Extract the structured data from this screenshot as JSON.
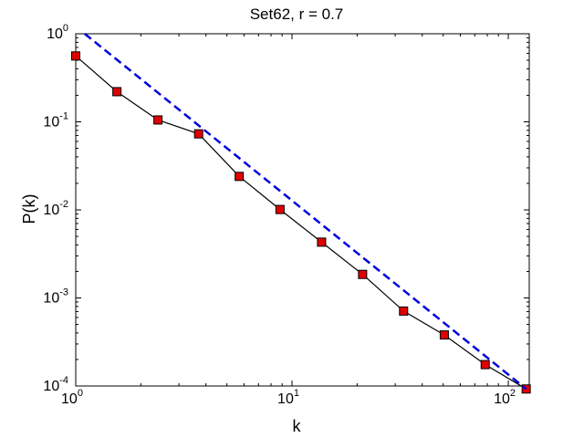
{
  "chart_data": {
    "type": "line",
    "title": "Set62, r = 0.7",
    "xlabel": "k",
    "ylabel": "P(k)",
    "xscale": "log",
    "yscale": "log",
    "xlim": [
      1,
      125
    ],
    "ylim": [
      0.0001,
      1
    ],
    "grid": false,
    "x_ticks": [
      {
        "value": 1,
        "base": "10",
        "exp": "0"
      },
      {
        "value": 10,
        "base": "10",
        "exp": "1"
      },
      {
        "value": 100,
        "base": "10",
        "exp": "2"
      }
    ],
    "y_ticks": [
      {
        "value": 0.0001,
        "base": "10",
        "exp": "-4"
      },
      {
        "value": 0.001,
        "base": "10",
        "exp": "-3"
      },
      {
        "value": 0.01,
        "base": "10",
        "exp": "-2"
      },
      {
        "value": 0.1,
        "base": "10",
        "exp": "-1"
      },
      {
        "value": 1,
        "base": "10",
        "exp": "0"
      }
    ],
    "series": [
      {
        "style": "black line with red square markers",
        "color": "#000000",
        "marker_color": "#e00000",
        "x": [
          1.0,
          1.55,
          2.4,
          3.7,
          5.7,
          8.8,
          13.7,
          21.2,
          32.8,
          50.6,
          78.2,
          121
        ],
        "y": [
          0.56,
          0.22,
          0.105,
          0.073,
          0.024,
          0.0101,
          0.0043,
          0.00185,
          0.00071,
          0.00038,
          0.000175,
          9.25e-05
        ]
      },
      {
        "style": "blue dashed fit line",
        "color": "#0000e0",
        "dashed": true,
        "x": [
          1.1,
          121
        ],
        "y": [
          1.0,
          9.25e-05
        ]
      }
    ]
  }
}
